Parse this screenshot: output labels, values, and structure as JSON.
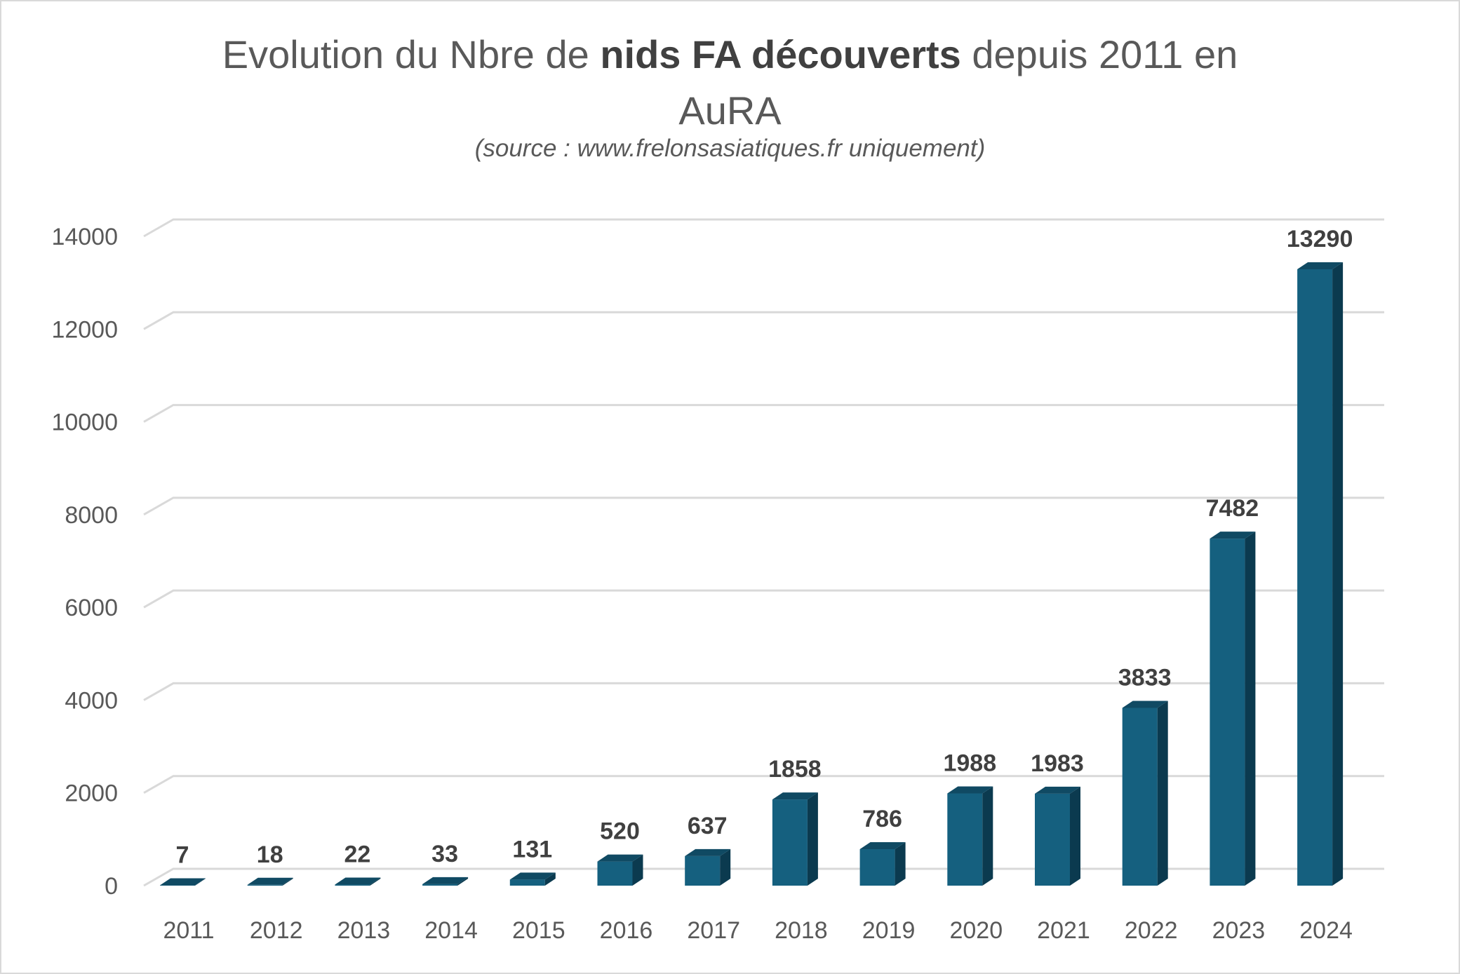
{
  "title": {
    "part1": "Evolution du Nbre de ",
    "bold": "nids FA découverts",
    "part2": " depuis 2011 en",
    "line2": "AuRA"
  },
  "subtitle": "(source : www.frelonsasiatiques.fr uniquement)",
  "colors": {
    "bar_front": "#15607f",
    "bar_top": "#104a63",
    "bar_side": "#0b3a4f",
    "gridline": "#d9d9d9"
  },
  "chart_data": {
    "type": "bar",
    "style": "3d-column",
    "categories": [
      "2011",
      "2012",
      "2013",
      "2014",
      "2015",
      "2016",
      "2017",
      "2018",
      "2019",
      "2020",
      "2021",
      "2022",
      "2023",
      "2024"
    ],
    "values": [
      7,
      18,
      22,
      33,
      131,
      520,
      637,
      1858,
      786,
      1988,
      1983,
      3833,
      7482,
      13290
    ],
    "data_labels": [
      "7",
      "18",
      "22",
      "33",
      "131",
      "520",
      "637",
      "1858",
      "786",
      "1988",
      "1983",
      "3833",
      "7482",
      "13290"
    ],
    "yticks": [
      "0",
      "2000",
      "4000",
      "6000",
      "8000",
      "10000",
      "12000",
      "14000"
    ],
    "ylim": [
      0,
      14000
    ],
    "grid": true,
    "legend": "none"
  }
}
